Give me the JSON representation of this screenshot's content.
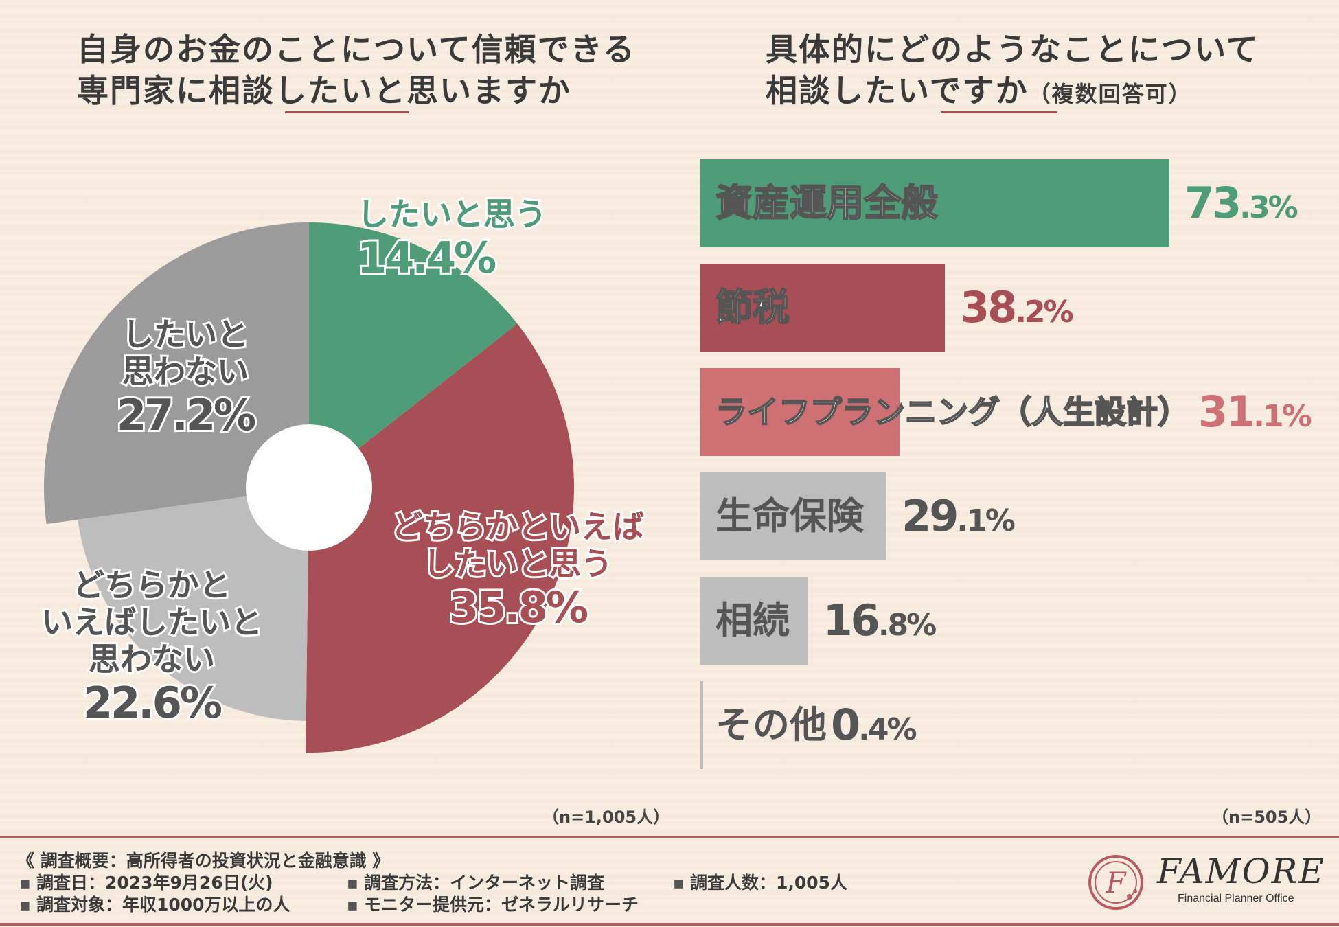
{
  "left_chart": {
    "title_line1": "自身のお金のことについて信頼できる",
    "title_line2": "専門家に相談したいと思いますか",
    "n_label": "（n=1,005人）"
  },
  "right_chart": {
    "title_line1": "具体的にどのようなことについて",
    "title_line2": "相談したいですか",
    "title_suffix": "（複数回答可）",
    "n_label": "（n=505人）"
  },
  "footer": {
    "heading": "《 調査概要：高所得者の投資状況と金融意識 》",
    "date": "調査日：2023年9月26日(火)",
    "method": "調査方法：インターネット調査",
    "count": "調査人数：1,005人",
    "target": "調査対象：年収1000万以上の人",
    "provider": "モニター提供元：ゼネラルリサーチ"
  },
  "logo": {
    "name": "FAMORE",
    "subtitle": "Financial Planner Office",
    "mark": "F"
  },
  "chart_data": [
    {
      "type": "pie",
      "title": "自身のお金のことについて信頼できる専門家に相談したいと思いますか",
      "categories": [
        "したいと思う",
        "どちらかといえばしたいと思う",
        "どちらかといえばしたいと思わない",
        "したいと思わない"
      ],
      "label_lines": [
        [
          "したいと思う"
        ],
        [
          "どちらかといえば",
          "したいと思う"
        ],
        [
          "どちらかと",
          "いえばしたいと",
          "思わない"
        ],
        [
          "したいと",
          "思わない"
        ]
      ],
      "values": [
        14.4,
        35.8,
        22.6,
        27.2
      ],
      "value_labels": [
        "14.4%",
        "35.8%",
        "22.6%",
        "27.2%"
      ],
      "colors": [
        "#4f9c79",
        "#a84e55",
        "#bdbdbd",
        "#9b9b9b"
      ],
      "n": "n=1,005人"
    },
    {
      "type": "bar",
      "orientation": "horizontal",
      "title": "具体的にどのようなことについて相談したいですか（複数回答可）",
      "categories": [
        "資産運用全般",
        "節税",
        "ライフプランニング（人生設計）",
        "生命保険",
        "相続",
        "その他"
      ],
      "values": [
        73.3,
        38.2,
        31.1,
        29.1,
        16.8,
        0.4
      ],
      "value_labels": [
        [
          "73",
          ".3%"
        ],
        [
          "38",
          ".2%"
        ],
        [
          "31",
          ".1%"
        ],
        [
          "29",
          ".1%"
        ],
        [
          "16",
          ".8%"
        ],
        [
          "0",
          ".4%"
        ]
      ],
      "colors": [
        "#4f9c79",
        "#a84e55",
        "#cf7075",
        "#bdbdbd",
        "#bdbdbd",
        "#bdbdbd"
      ],
      "value_colors": [
        "#4f9c79",
        "#a84e55",
        "#cf7075",
        "#555555",
        "#555555",
        "#555555"
      ],
      "xlim": [
        0,
        73.3
      ],
      "n": "n=505人"
    }
  ]
}
